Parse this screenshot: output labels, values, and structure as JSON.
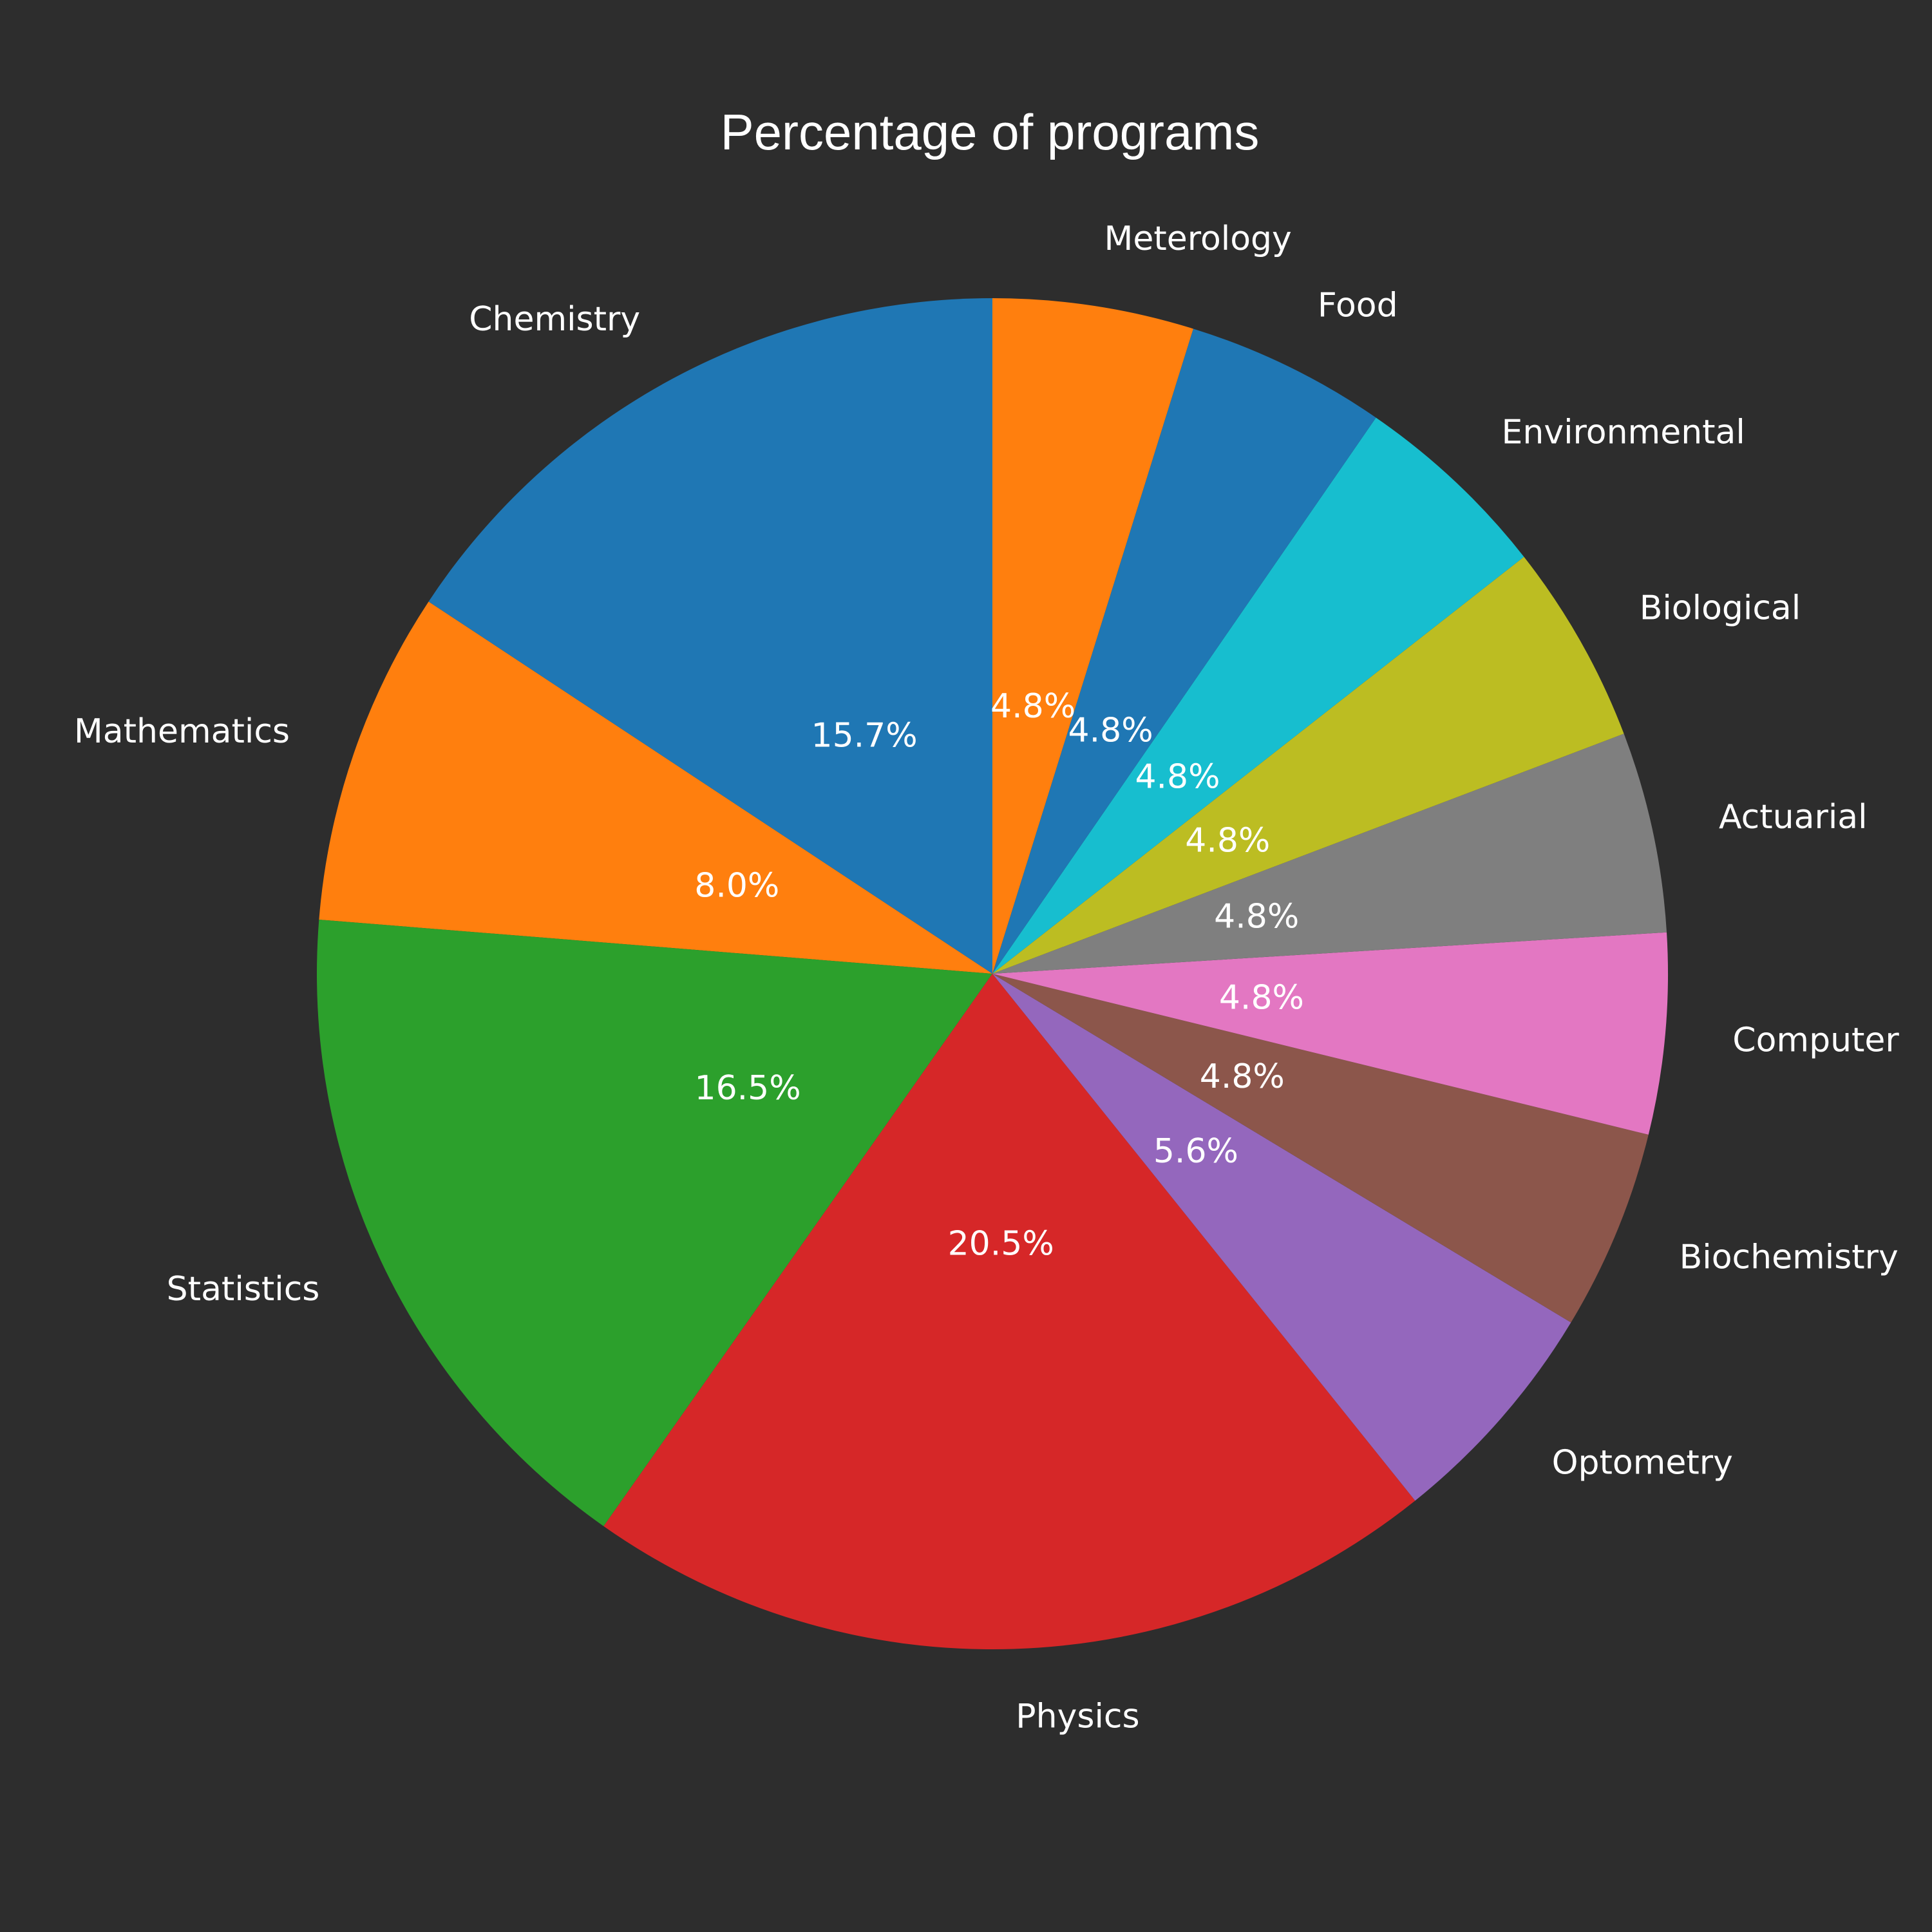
{
  "chart_data": {
    "type": "pie",
    "title": "Percentage of programs",
    "start_angle": 90,
    "direction": "counterclockwise",
    "slices": [
      {
        "label": "Chemistry",
        "value": 15.7,
        "pct_label": "15.7%",
        "color": "#1f77b4"
      },
      {
        "label": "Mathematics",
        "value": 8.0,
        "pct_label": "8.0%",
        "color": "#ff7f0e"
      },
      {
        "label": "Statistics",
        "value": 16.5,
        "pct_label": "16.5%",
        "color": "#2ca02c"
      },
      {
        "label": "Physics",
        "value": 20.5,
        "pct_label": "20.5%",
        "color": "#d62728"
      },
      {
        "label": "Optometry",
        "value": 5.6,
        "pct_label": "5.6%",
        "color": "#9467bd"
      },
      {
        "label": "Biochemistry",
        "value": 4.8,
        "pct_label": "4.8%",
        "color": "#8c564b"
      },
      {
        "label": "Computer",
        "value": 4.8,
        "pct_label": "4.8%",
        "color": "#e377c2"
      },
      {
        "label": "Actuarial",
        "value": 4.8,
        "pct_label": "4.8%",
        "color": "#7f7f7f"
      },
      {
        "label": "Biological",
        "value": 4.8,
        "pct_label": "4.8%",
        "color": "#bcbd22"
      },
      {
        "label": "Environmental",
        "value": 4.8,
        "pct_label": "4.8%",
        "color": "#17becf"
      },
      {
        "label": "Food",
        "value": 4.8,
        "pct_label": "4.8%",
        "color": "#1f77b4"
      },
      {
        "label": "Meterology",
        "value": 4.8,
        "pct_label": "4.8%",
        "color": "#ff7f0e"
      }
    ]
  }
}
